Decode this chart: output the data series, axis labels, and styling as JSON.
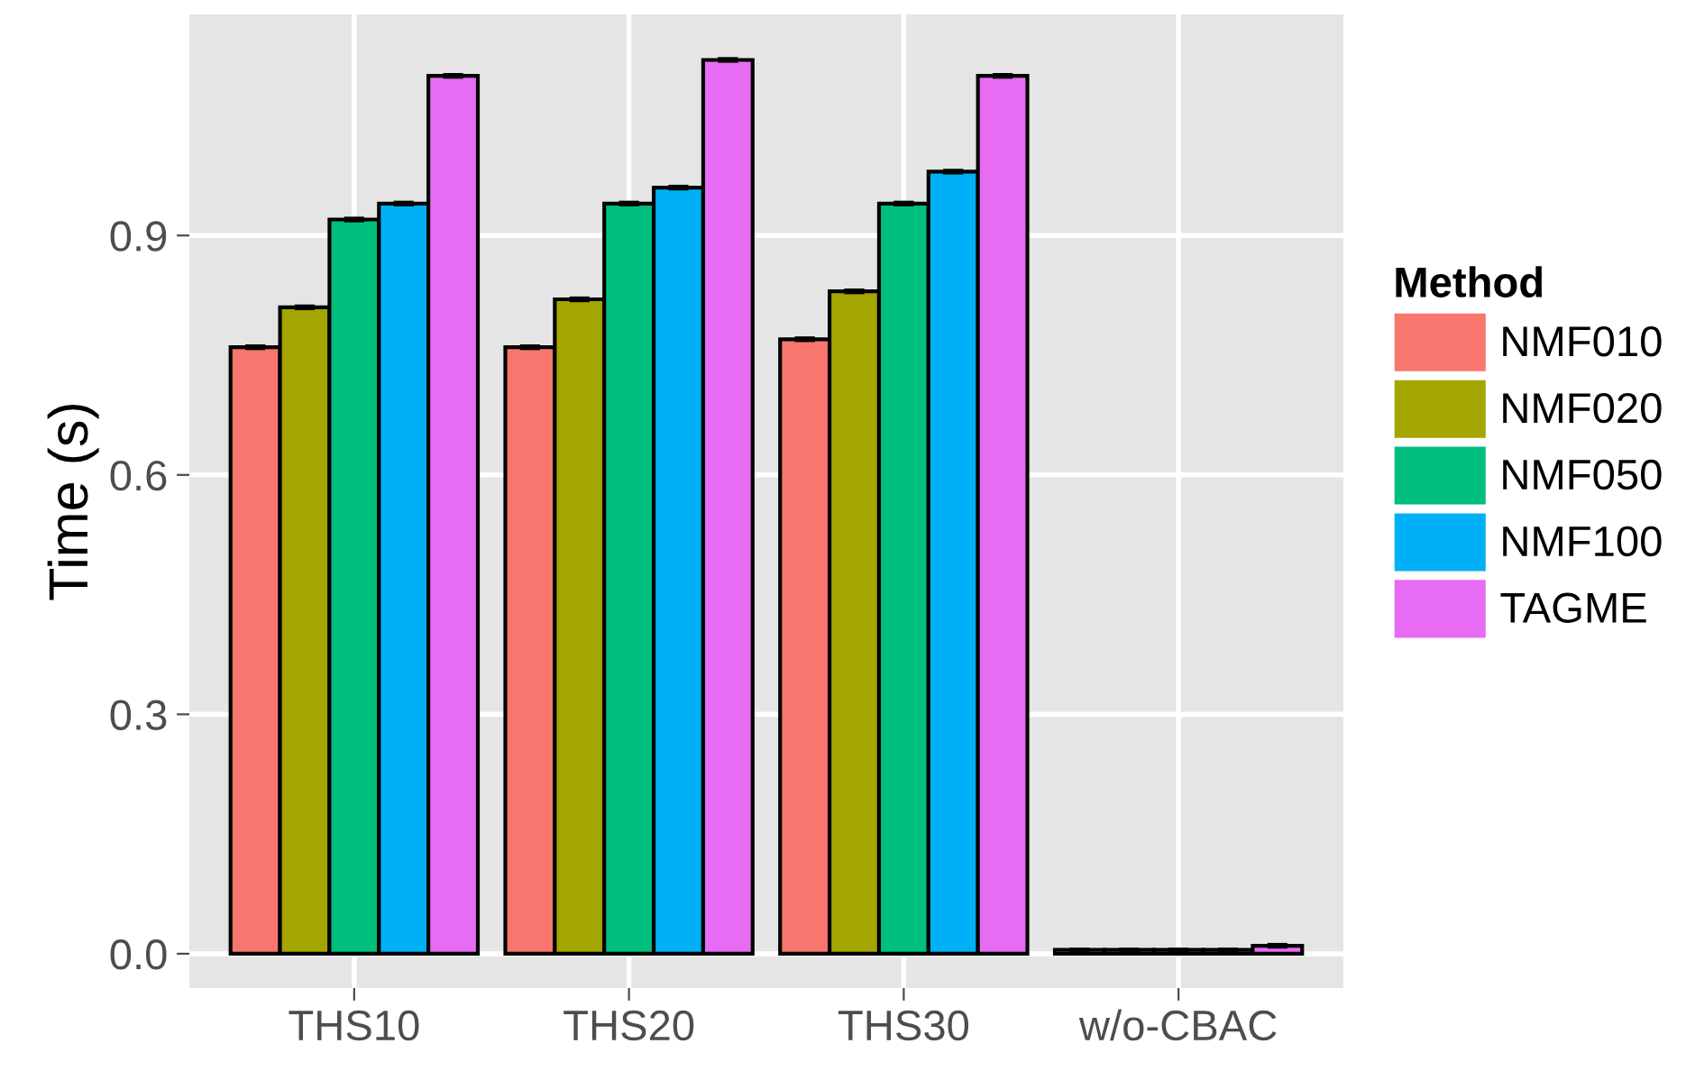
{
  "chart_data": {
    "type": "bar",
    "ylabel": "Time (s)",
    "legend_title": "Method",
    "legend": "right",
    "categories": [
      "THS10",
      "THS20",
      "THS30",
      "w/o-CBAC"
    ],
    "series": [
      {
        "name": "NMF010",
        "color": "#f8766d",
        "values": [
          0.76,
          0.76,
          0.77,
          0.005
        ],
        "errors": [
          0.002,
          0.002,
          0.002,
          0.001
        ]
      },
      {
        "name": "NMF020",
        "color": "#a3a500",
        "values": [
          0.81,
          0.82,
          0.83,
          0.005
        ],
        "errors": [
          0.002,
          0.002,
          0.002,
          0.001
        ]
      },
      {
        "name": "NMF050",
        "color": "#00bf7d",
        "values": [
          0.92,
          0.94,
          0.94,
          0.005
        ],
        "errors": [
          0.002,
          0.002,
          0.002,
          0.001
        ]
      },
      {
        "name": "NMF100",
        "color": "#00b0f6",
        "values": [
          0.94,
          0.96,
          0.98,
          0.005
        ],
        "errors": [
          0.002,
          0.002,
          0.002,
          0.001
        ]
      },
      {
        "name": "TAGME",
        "color": "#e76bf3",
        "values": [
          1.1,
          1.12,
          1.1,
          0.01
        ],
        "errors": [
          0.002,
          0.002,
          0.002,
          0.002
        ]
      }
    ],
    "ylim": [
      -0.043,
      1.177
    ],
    "yticks": [
      {
        "value": 0,
        "label": "0.0"
      },
      0.3,
      0.6,
      0.9
    ],
    "grid": true
  }
}
